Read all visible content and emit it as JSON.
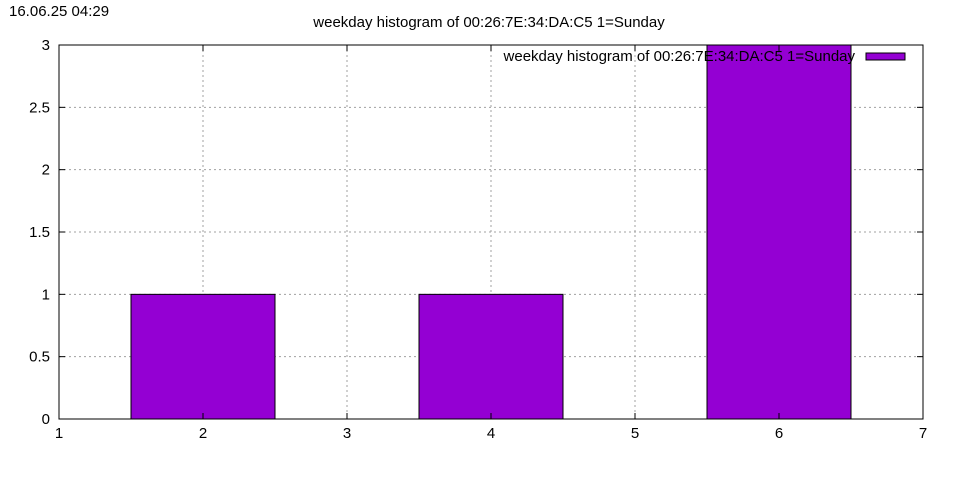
{
  "timestamp": "16.06.25 04:29",
  "chart_data": {
    "type": "bar",
    "title": "weekday histogram of 00:26:7E:34:DA:C5 1=Sunday",
    "xlabel": "",
    "ylabel": "",
    "xlim": [
      1,
      7
    ],
    "ylim": [
      0,
      3
    ],
    "xticks": [
      "1",
      "2",
      "3",
      "4",
      "5",
      "6",
      "7"
    ],
    "yticks": [
      "0",
      "0.5",
      "1",
      "1.5",
      "2",
      "2.5",
      "3"
    ],
    "bar_width": 1,
    "grid": true,
    "legend_position": "top-right",
    "series": [
      {
        "name": "weekday histogram of 00:26:7E:34:DA:C5 1=Sunday",
        "color": "#9400d3",
        "x": [
          2,
          4,
          6
        ],
        "values": [
          1,
          1,
          3
        ]
      }
    ]
  }
}
